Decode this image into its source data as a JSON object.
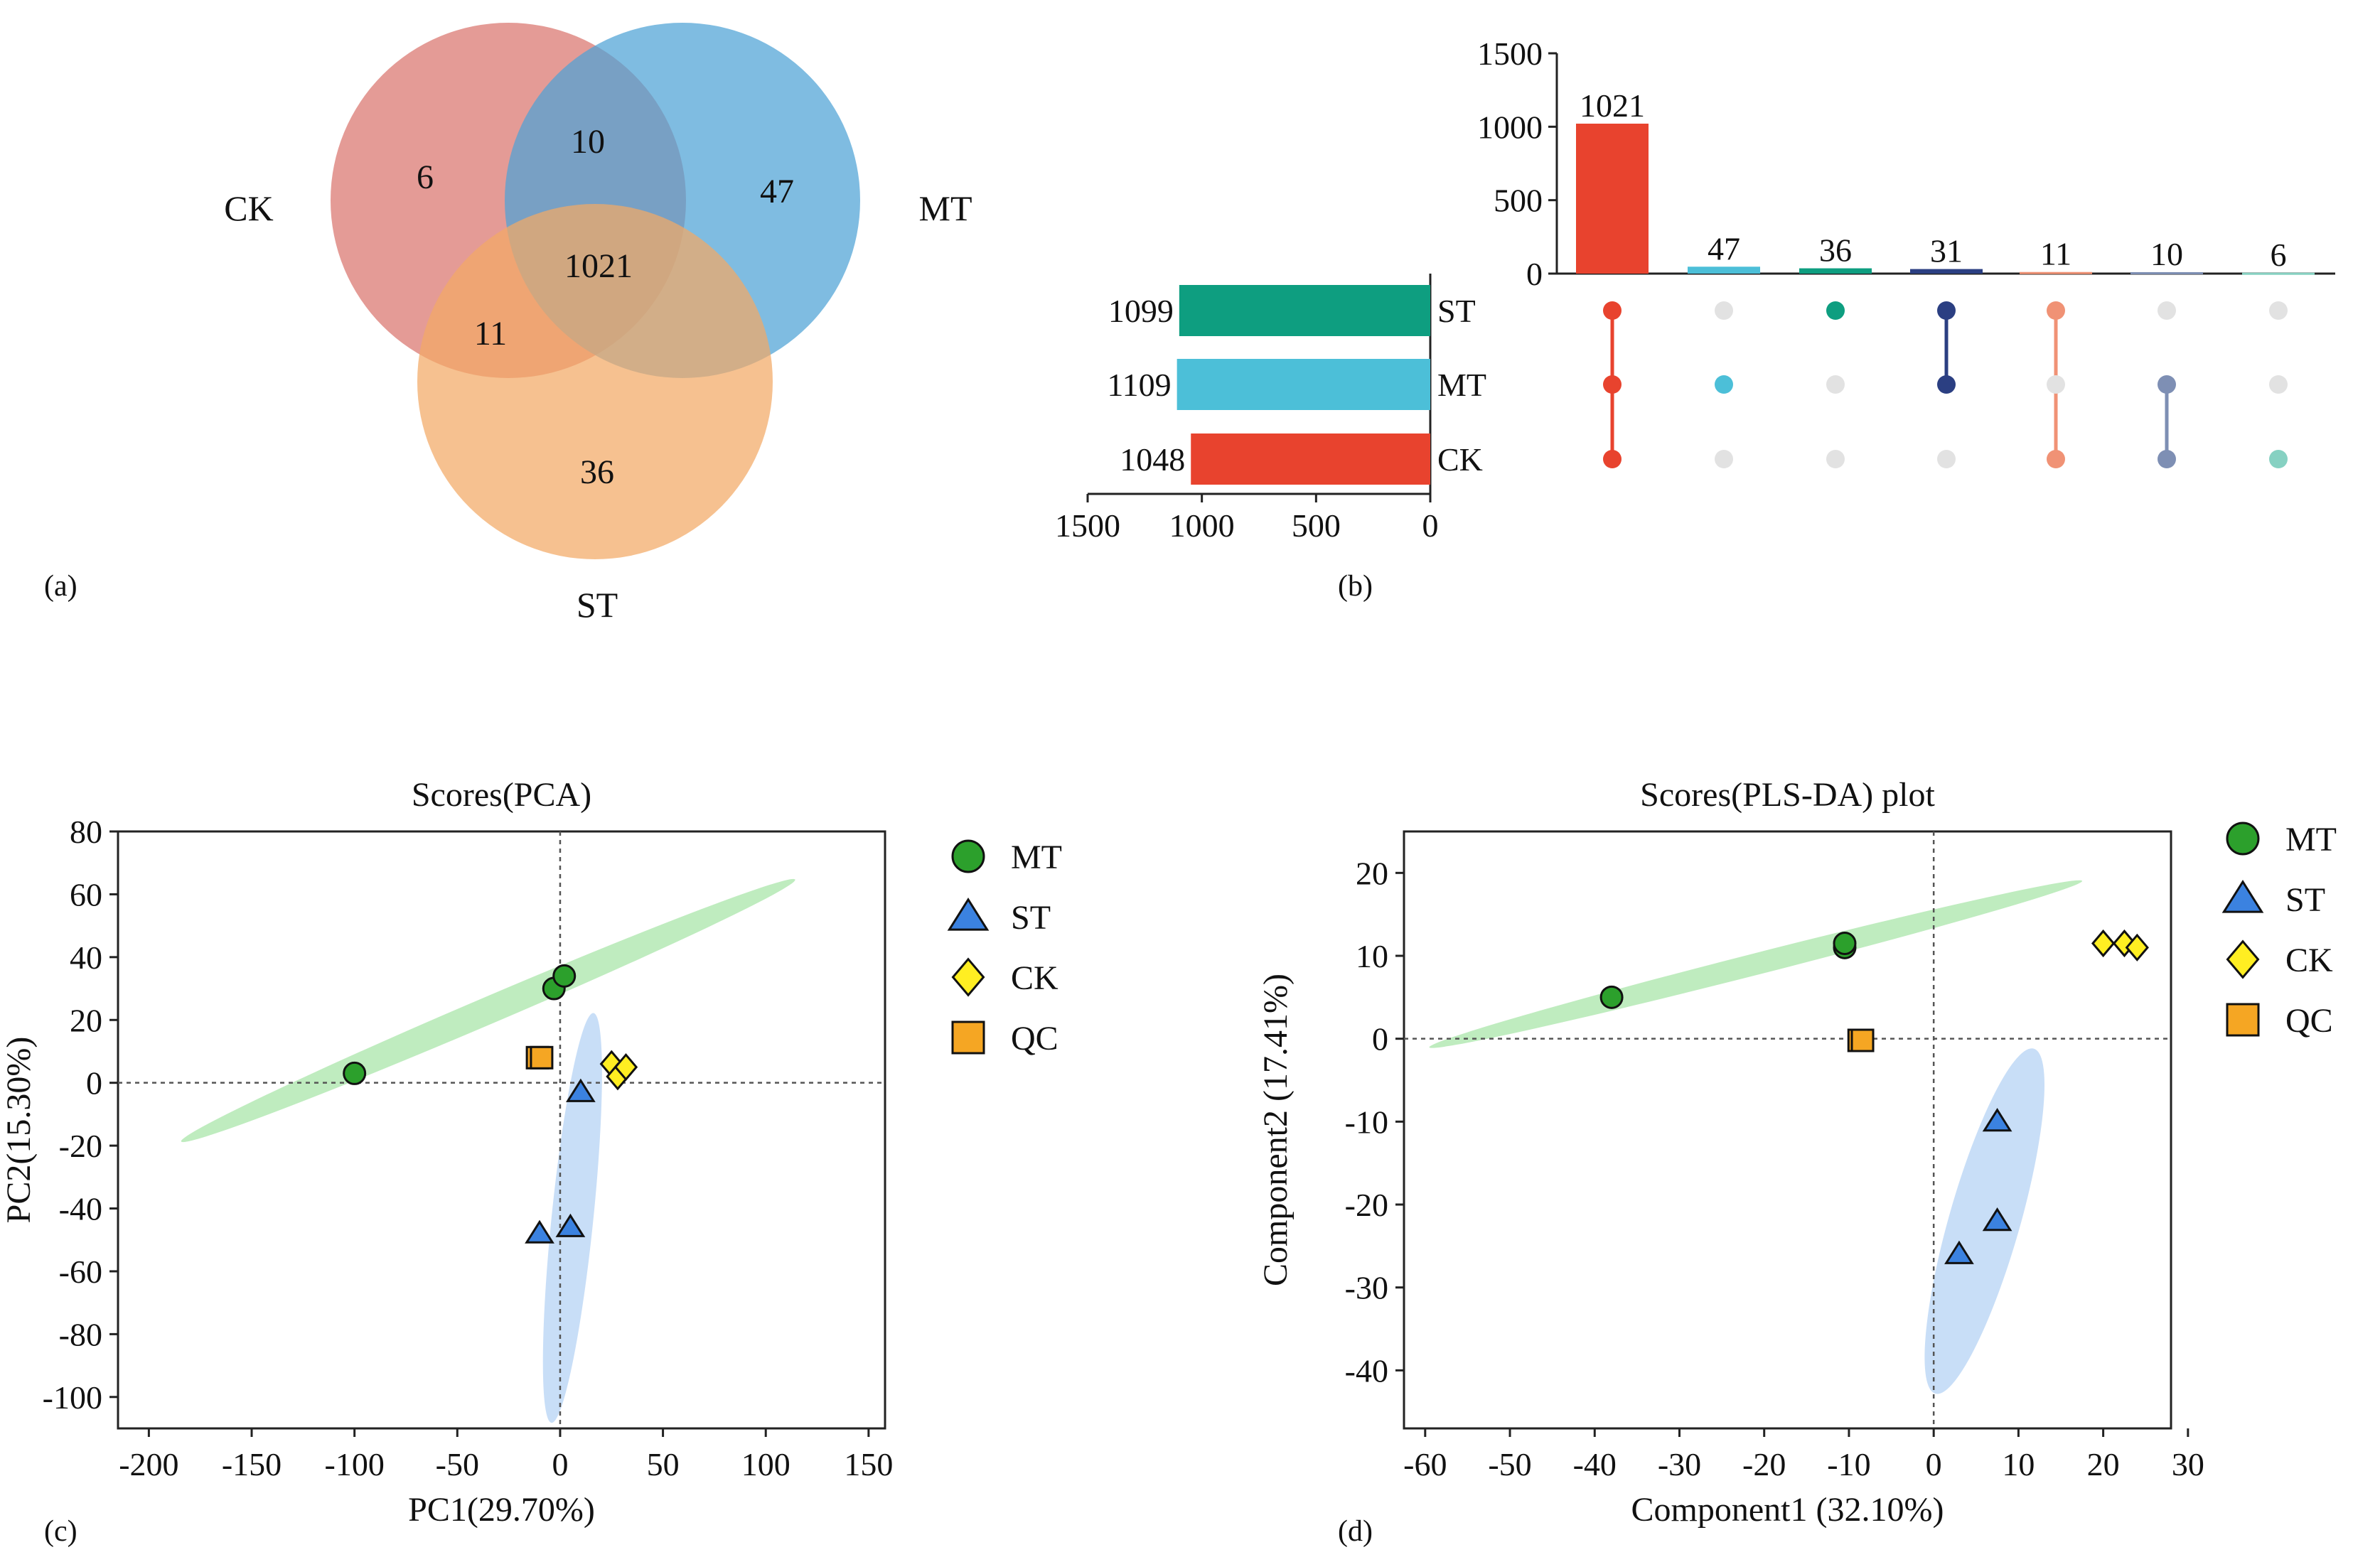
{
  "panel_labels": {
    "a": "(a)",
    "b": "(b)",
    "c": "(c)",
    "d": "(d)"
  },
  "chart_data": [
    {
      "panel": "a",
      "type": "venn",
      "sets": [
        {
          "name": "CK",
          "color": "#d9746d"
        },
        {
          "name": "MT",
          "color": "#4da2d6"
        },
        {
          "name": "ST",
          "color": "#f2a965"
        }
      ],
      "regions": [
        {
          "sets": [
            "CK"
          ],
          "value": 6
        },
        {
          "sets": [
            "MT"
          ],
          "value": 47
        },
        {
          "sets": [
            "ST"
          ],
          "value": 36
        },
        {
          "sets": [
            "CK",
            "MT"
          ],
          "value": 10
        },
        {
          "sets": [
            "CK",
            "ST"
          ],
          "value": 11
        },
        {
          "sets": [
            "CK",
            "MT",
            "ST"
          ],
          "value": 1021
        }
      ]
    },
    {
      "panel": "b",
      "type": "upset",
      "sets": [
        {
          "name": "ST",
          "size": 1099,
          "color": "#0e9e80"
        },
        {
          "name": "MT",
          "size": 1109,
          "color": "#4cbfd8"
        },
        {
          "name": "CK",
          "size": 1048,
          "color": "#e8432e"
        }
      ],
      "set_axis": {
        "ticks": [
          "1500",
          "1000",
          "500",
          "0"
        ],
        "range": [
          1500,
          0
        ]
      },
      "intersection_axis": {
        "ticks": [
          "1500",
          "1000",
          "500",
          "0"
        ],
        "range": [
          0,
          1500
        ]
      },
      "intersections": [
        {
          "value": 1021,
          "sets": [
            "ST",
            "MT",
            "CK"
          ],
          "color": "#e8432e"
        },
        {
          "value": 47,
          "sets": [
            "MT"
          ],
          "color": "#4cbfd8"
        },
        {
          "value": 36,
          "sets": [
            "ST"
          ],
          "color": "#0e9e80"
        },
        {
          "value": 31,
          "sets": [
            "ST",
            "MT"
          ],
          "color": "#2b3f82"
        },
        {
          "value": 11,
          "sets": [
            "ST",
            "CK"
          ],
          "color": "#f09275"
        },
        {
          "value": 10,
          "sets": [
            "MT",
            "CK"
          ],
          "color": "#7e8fb4"
        },
        {
          "value": 6,
          "sets": [
            "CK"
          ],
          "color": "#86d1c2"
        }
      ]
    },
    {
      "panel": "c",
      "type": "scatter",
      "title": "Scores(PCA)",
      "xlabel": "PC1(29.70%)",
      "ylabel": "PC2(15.30%)",
      "xlim": [
        -215,
        158
      ],
      "ylim": [
        -110,
        80
      ],
      "xticks": [
        "-200",
        "-150",
        "-100",
        "-50",
        "0",
        "50",
        "100",
        "150"
      ],
      "yticks": [
        "80",
        "60",
        "40",
        "20",
        "0",
        "-20",
        "-40",
        "-60",
        "-80",
        "-100"
      ],
      "series": [
        {
          "name": "MT",
          "marker": "circle",
          "color": "#2ca02c",
          "points": [
            [
              -100,
              3
            ],
            [
              -3,
              30
            ],
            [
              2,
              34
            ]
          ]
        },
        {
          "name": "ST",
          "marker": "triangle",
          "color": "#3b82e0",
          "points": [
            [
              10,
              -3
            ],
            [
              -10,
              -48
            ],
            [
              5,
              -46
            ]
          ]
        },
        {
          "name": "CK",
          "marker": "diamond",
          "color": "#ffee22",
          "points": [
            [
              25,
              6
            ],
            [
              28,
              2
            ],
            [
              32,
              5
            ]
          ]
        },
        {
          "name": "QC",
          "marker": "square",
          "color": "#f5a623",
          "points": [
            [
              -11,
              8
            ],
            [
              -9,
              8
            ]
          ]
        }
      ],
      "ellipses": [
        {
          "group": "MT",
          "center": [
            -35,
            23
          ],
          "rx": 155,
          "ry": 4.4,
          "angle_deg": 15.6,
          "color": "#a9e6a9"
        },
        {
          "group": "ST",
          "center": [
            6,
            -43
          ],
          "rx": 66,
          "ry": 10,
          "angle_deg": 81.1,
          "color": "#b5d3f4"
        }
      ]
    },
    {
      "panel": "d",
      "type": "scatter",
      "title": "Scores(PLS-DA) plot",
      "xlabel": "Component1 (32.10%)",
      "ylabel": "Component2 (17.41%)",
      "xlim": [
        -62.5,
        28
      ],
      "ylim": [
        -47,
        25
      ],
      "xticks": [
        "-60",
        "-50",
        "-40",
        "-30",
        "-20",
        "-10",
        "0",
        "10",
        "20",
        "30"
      ],
      "yticks": [
        "20",
        "10",
        "0",
        "-10",
        "-20",
        "-30",
        "-40"
      ],
      "series": [
        {
          "name": "MT",
          "marker": "circle",
          "color": "#2ca02c",
          "points": [
            [
              -38,
              5
            ],
            [
              -10.5,
              11
            ],
            [
              -10.5,
              11.5
            ]
          ]
        },
        {
          "name": "ST",
          "marker": "triangle",
          "color": "#3b82e0",
          "points": [
            [
              7.5,
              -10
            ],
            [
              7.5,
              -22
            ],
            [
              3,
              -26
            ]
          ]
        },
        {
          "name": "CK",
          "marker": "diamond",
          "color": "#ffee22",
          "points": [
            [
              20,
              11.5
            ],
            [
              22.5,
              11.5
            ],
            [
              24,
              11
            ]
          ]
        },
        {
          "name": "QC",
          "marker": "square",
          "color": "#f5a623",
          "points": [
            [
              -8.8,
              -0.2
            ],
            [
              -8.4,
              -0.2
            ]
          ]
        }
      ],
      "ellipses": [
        {
          "group": "MT",
          "center": [
            -21,
            9
          ],
          "rx": 39.8,
          "ry": 1.3,
          "angle_deg": 14.6,
          "color": "#a9e6a9"
        },
        {
          "group": "ST",
          "center": [
            6,
            -22
          ],
          "rx": 21.6,
          "ry": 4.2,
          "angle_deg": 74.4,
          "color": "#b5d3f4"
        }
      ]
    }
  ]
}
